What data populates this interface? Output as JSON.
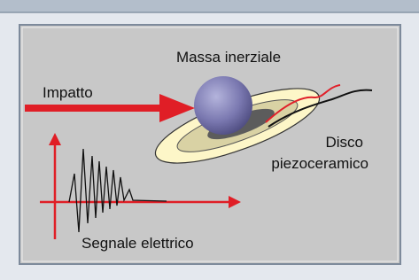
{
  "labels": {
    "mass": "Massa inerziale",
    "impact": "Impatto",
    "disc": [
      "Disco",
      "piezoceramico"
    ],
    "signal": "Segnale elettrico"
  }
}
